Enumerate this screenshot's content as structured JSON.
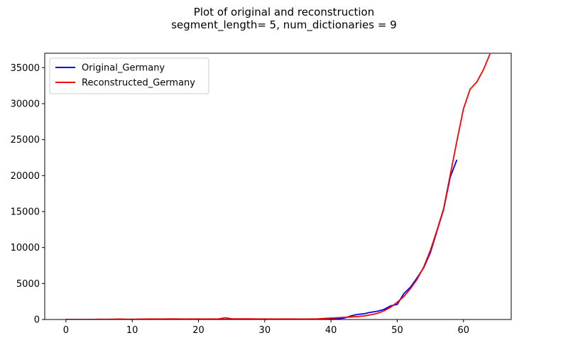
{
  "chart_data": {
    "type": "line",
    "title": "Plot of original and reconstruction",
    "subtitle": "segment_length= 5, num_dictionaries = 9",
    "xlabel": "",
    "ylabel": "",
    "xlim": [
      -3.2,
      67.2
    ],
    "ylim": [
      0,
      37000
    ],
    "x_ticks": [
      0,
      10,
      20,
      30,
      40,
      50,
      60
    ],
    "y_ticks": [
      0,
      5000,
      10000,
      15000,
      20000,
      25000,
      30000,
      35000
    ],
    "grid": false,
    "legend_position": "top-left",
    "series": [
      {
        "name": "Original_Germany",
        "color": "#0000ff",
        "x": [
          0,
          1,
          2,
          3,
          4,
          5,
          6,
          7,
          8,
          9,
          10,
          11,
          12,
          13,
          14,
          15,
          16,
          17,
          18,
          19,
          20,
          21,
          22,
          23,
          24,
          25,
          26,
          27,
          28,
          29,
          30,
          31,
          32,
          33,
          34,
          35,
          36,
          37,
          38,
          39,
          40,
          41,
          42,
          43,
          44,
          45,
          46,
          47,
          48,
          49,
          50,
          51,
          52,
          53,
          54,
          55,
          56,
          57,
          58,
          59
        ],
        "values": [
          0,
          0,
          0,
          0,
          0,
          0,
          0,
          0,
          0,
          0,
          0,
          0,
          0,
          0,
          0,
          0,
          0,
          0,
          0,
          0,
          0,
          0,
          0,
          0,
          0,
          0,
          0,
          0,
          0,
          0,
          0,
          0,
          0,
          0,
          0,
          0,
          0,
          0,
          0,
          0,
          50,
          100,
          200,
          500,
          700,
          800,
          1000,
          1150,
          1400,
          1900,
          2100,
          3600,
          4500,
          5800,
          7200,
          9300,
          12300,
          15300,
          19800,
          22200
        ]
      },
      {
        "name": "Reconstructed_Germany",
        "color": "#ff0000",
        "x": [
          0,
          1,
          2,
          3,
          4,
          5,
          6,
          7,
          8,
          9,
          10,
          11,
          12,
          13,
          14,
          15,
          16,
          17,
          18,
          19,
          20,
          21,
          22,
          23,
          24,
          25,
          26,
          27,
          28,
          29,
          30,
          31,
          32,
          33,
          34,
          35,
          36,
          37,
          38,
          39,
          40,
          41,
          42,
          43,
          44,
          45,
          46,
          47,
          48,
          49,
          50,
          51,
          52,
          53,
          54,
          55,
          56,
          57,
          58,
          59,
          60,
          61,
          62,
          63,
          64
        ],
        "values": [
          0,
          0,
          0,
          0,
          0,
          30,
          20,
          40,
          60,
          30,
          40,
          50,
          60,
          70,
          60,
          70,
          80,
          70,
          60,
          70,
          70,
          60,
          70,
          60,
          250,
          100,
          80,
          80,
          80,
          70,
          70,
          70,
          60,
          70,
          70,
          60,
          60,
          70,
          80,
          150,
          200,
          250,
          300,
          350,
          400,
          500,
          650,
          850,
          1200,
          1700,
          2400,
          3200,
          4300,
          5600,
          7300,
          9600,
          12400,
          15400,
          20100,
          24800,
          29300,
          32000,
          33000,
          34700,
          36900
        ]
      }
    ]
  }
}
